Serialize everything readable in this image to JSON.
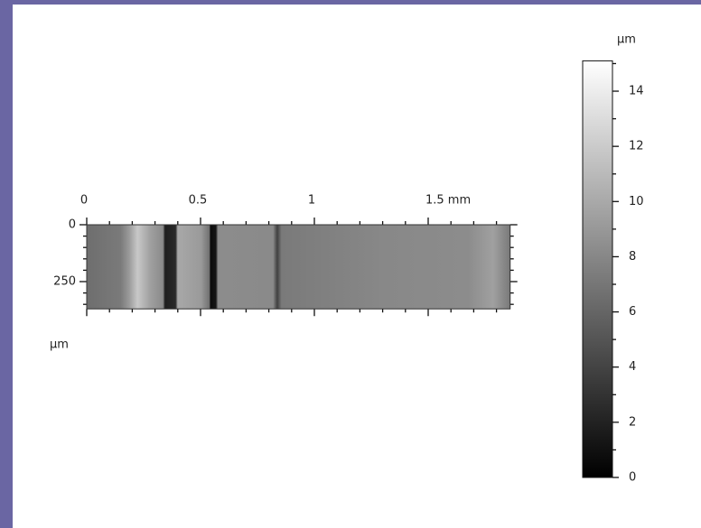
{
  "chart_data": {
    "type": "image",
    "xlim": [
      0,
      1.86
    ],
    "xticks": [
      0,
      0.5,
      1,
      {
        "value": 1.5,
        "label": "1.5 mm"
      }
    ],
    "ylim": [
      0,
      370
    ],
    "yticks": [
      0,
      250
    ],
    "ylabel": "µm",
    "colorbar": {
      "lim": [
        0,
        15.1
      ],
      "ticks": [
        0,
        2,
        4,
        6,
        8,
        10,
        12,
        14
      ],
      "label": "µm"
    }
  }
}
